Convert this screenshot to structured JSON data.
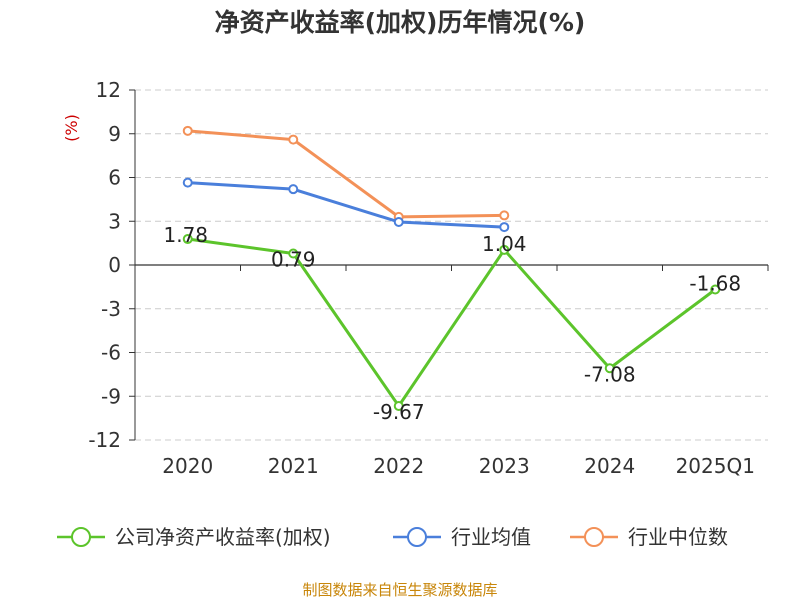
{
  "chart_data": {
    "type": "line",
    "title": "净资产收益率(加权)历年情况(%)",
    "ylabel": "(%)",
    "xlabel": "",
    "categories": [
      "2020",
      "2021",
      "2022",
      "2023",
      "2024",
      "2025Q1"
    ],
    "ylim": [
      -12,
      12
    ],
    "yticks": [
      12,
      9,
      6,
      3,
      0,
      -3,
      -6,
      -9,
      -12
    ],
    "grid": true,
    "legend_position": "bottom",
    "series": [
      {
        "name": "公司净资产收益率(加权)",
        "color": "#5cc42b",
        "values": [
          1.78,
          0.79,
          -9.67,
          1.04,
          -7.08,
          -1.68
        ],
        "labels": [
          "1.78",
          "0.79",
          "-9.67",
          "1.04",
          "-7.08",
          "-1.68"
        ]
      },
      {
        "name": "行业均值",
        "color": "#4a7fdb",
        "values": [
          5.65,
          5.2,
          2.95,
          2.6,
          null,
          null
        ]
      },
      {
        "name": "行业中位数",
        "color": "#f39158",
        "values": [
          9.2,
          8.6,
          3.3,
          3.4,
          null,
          null
        ]
      }
    ],
    "source": "制图数据来自恒生聚源数据库"
  }
}
